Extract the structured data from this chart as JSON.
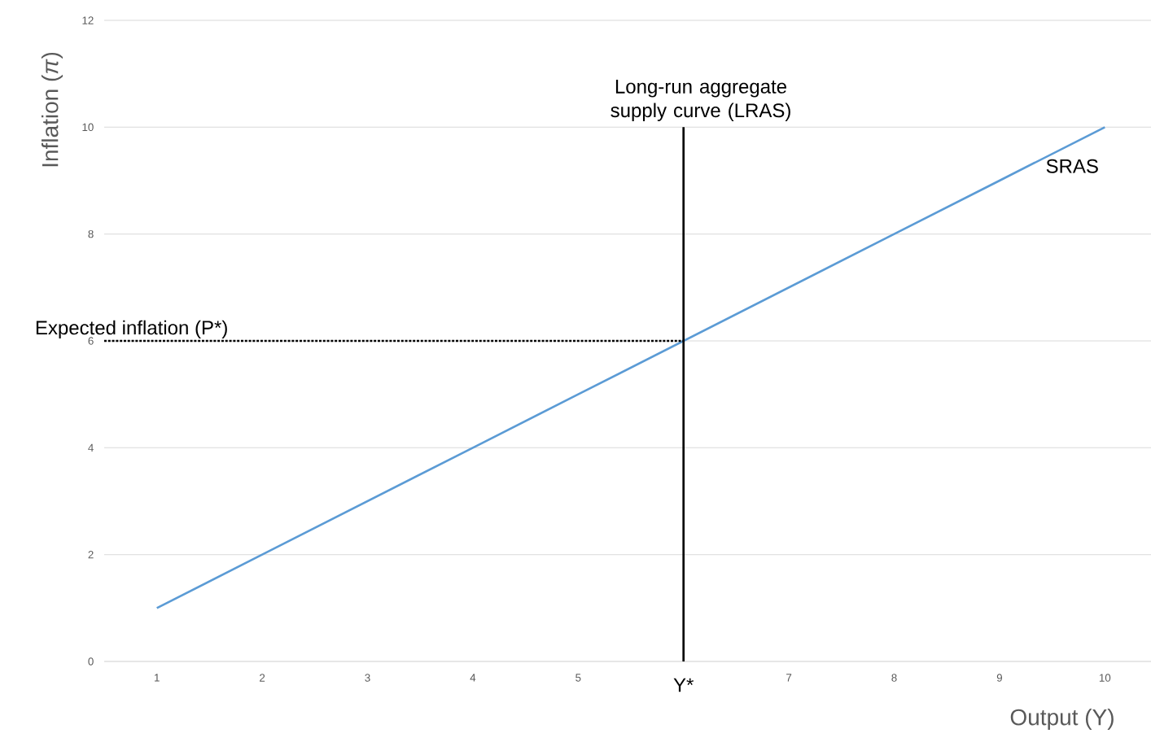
{
  "chart_data": {
    "type": "line",
    "xlabel": "Output (Y)",
    "ylabel": "Inflation (*π*)",
    "xlim": [
      0.5,
      10.5
    ],
    "ylim": [
      0,
      12
    ],
    "xticks": [
      1,
      2,
      3,
      4,
      5,
      7,
      8,
      9,
      10
    ],
    "yticks": [
      0,
      2,
      4,
      6,
      8,
      10,
      12
    ],
    "grid": "y",
    "series": [
      {
        "name": "SRAS",
        "color": "#5b9bd5",
        "x": [
          1,
          2,
          3,
          4,
          5,
          6,
          7,
          8,
          9,
          10
        ],
        "values": [
          1,
          2,
          3,
          4,
          5,
          6,
          7,
          8,
          9,
          10
        ]
      },
      {
        "name": "Long-run aggregate supply curve (LRAS)",
        "color": "#000000",
        "x": [
          6,
          6
        ],
        "values": [
          0,
          10
        ]
      },
      {
        "name": "Expected inflation (P*)",
        "color": "#000000",
        "x": [
          0.5,
          6
        ],
        "values": [
          6,
          6
        ],
        "line_style": "dotted"
      }
    ],
    "annotations": [
      {
        "text": "Y*",
        "x": 6,
        "y": 0
      }
    ]
  }
}
